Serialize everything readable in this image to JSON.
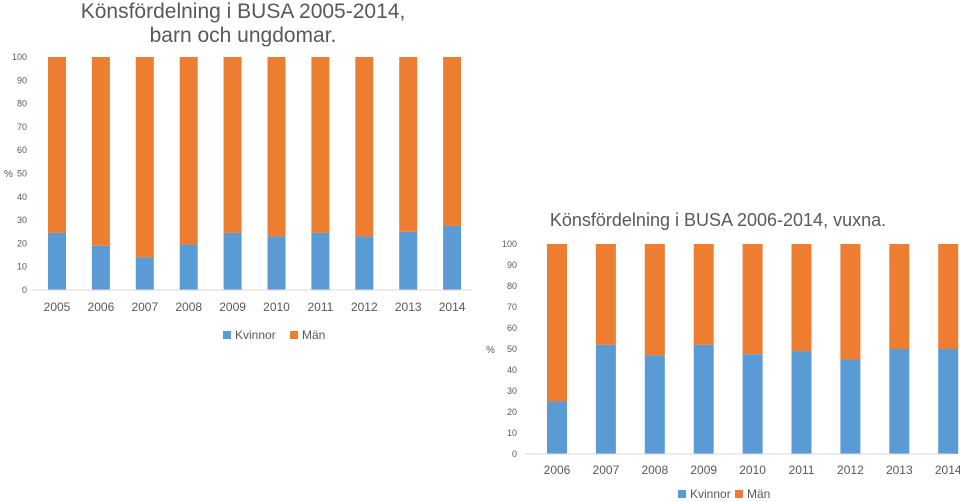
{
  "chart_data": [
    {
      "type": "bar",
      "stacked": true,
      "title": "Könsfördelning i BUSA 2005-2014,",
      "title_line2": "barn och ungdomar.",
      "ylabel": "%",
      "xlabel": "",
      "ylim": [
        0,
        100
      ],
      "yticks": [
        0,
        10,
        20,
        30,
        40,
        50,
        60,
        70,
        80,
        90,
        100
      ],
      "categories": [
        "2005",
        "2006",
        "2007",
        "2008",
        "2009",
        "2010",
        "2011",
        "2012",
        "2013",
        "2014"
      ],
      "series": [
        {
          "name": "Kvinnor",
          "color": "#5B9BD5",
          "values": [
            24.5,
            19,
            14,
            19.5,
            24.5,
            23,
            24.5,
            23,
            25,
            27.5
          ]
        },
        {
          "name": "Män",
          "color": "#ED7D31",
          "values": [
            75.5,
            81,
            86,
            80.5,
            75.5,
            77,
            75.5,
            77,
            75,
            72.5
          ]
        }
      ],
      "legend": "bottom"
    },
    {
      "type": "bar",
      "stacked": true,
      "title": "Könsfördelning i BUSA 2006-2014, vuxna.",
      "ylabel": "%",
      "xlabel": "",
      "ylim": [
        0,
        100
      ],
      "yticks": [
        0,
        10,
        20,
        30,
        40,
        50,
        60,
        70,
        80,
        90,
        100
      ],
      "categories": [
        "2006",
        "2007",
        "2008",
        "2009",
        "2010",
        "2011",
        "2012",
        "2013",
        "2014"
      ],
      "series": [
        {
          "name": "Kvinnor",
          "color": "#5B9BD5",
          "values": [
            25,
            52,
            47,
            52,
            47.5,
            49,
            45,
            50,
            50
          ]
        },
        {
          "name": "Män",
          "color": "#ED7D31",
          "values": [
            75,
            48,
            53,
            48,
            52.5,
            51,
            55,
            50,
            50
          ]
        }
      ],
      "legend": "bottom"
    }
  ]
}
